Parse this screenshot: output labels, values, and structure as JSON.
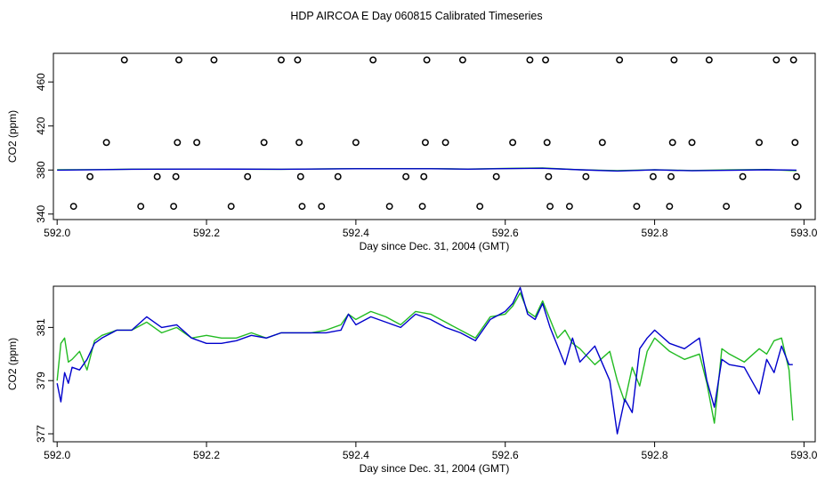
{
  "title": "HDP AIRCOA E  Day 060815  Calibrated Timeseries",
  "colors": {
    "series_green": "#22bb22",
    "series_blue": "#0000cc",
    "axis": "#000000",
    "marker": "#000000"
  },
  "chart_data": [
    {
      "type": "scatter",
      "xlabel": "Day since Dec. 31, 2004 (GMT)",
      "ylabel": "CO2 (ppm)",
      "xlim": [
        591.995,
        593.015
      ],
      "ylim": [
        335,
        486
      ],
      "xticks": [
        "592.0",
        "592.2",
        "592.4",
        "592.6",
        "592.8",
        "593.0"
      ],
      "yticks": [
        "340",
        "380",
        "420",
        "460"
      ],
      "grid": false,
      "markers": [
        {
          "x": 592.022,
          "y": 347
        },
        {
          "x": 592.044,
          "y": 374
        },
        {
          "x": 592.066,
          "y": 405
        },
        {
          "x": 592.09,
          "y": 480
        },
        {
          "x": 592.112,
          "y": 347
        },
        {
          "x": 592.134,
          "y": 374
        },
        {
          "x": 592.156,
          "y": 347
        },
        {
          "x": 592.159,
          "y": 374
        },
        {
          "x": 592.161,
          "y": 405
        },
        {
          "x": 592.163,
          "y": 480
        },
        {
          "x": 592.187,
          "y": 405
        },
        {
          "x": 592.21,
          "y": 480
        },
        {
          "x": 592.233,
          "y": 347
        },
        {
          "x": 592.255,
          "y": 374
        },
        {
          "x": 592.277,
          "y": 405
        },
        {
          "x": 592.3,
          "y": 480
        },
        {
          "x": 592.322,
          "y": 480
        },
        {
          "x": 592.324,
          "y": 405
        },
        {
          "x": 592.326,
          "y": 374
        },
        {
          "x": 592.328,
          "y": 347
        },
        {
          "x": 592.354,
          "y": 347
        },
        {
          "x": 592.376,
          "y": 374
        },
        {
          "x": 592.4,
          "y": 405
        },
        {
          "x": 592.423,
          "y": 480
        },
        {
          "x": 592.445,
          "y": 347
        },
        {
          "x": 592.467,
          "y": 374
        },
        {
          "x": 592.489,
          "y": 347
        },
        {
          "x": 592.491,
          "y": 374
        },
        {
          "x": 592.493,
          "y": 405
        },
        {
          "x": 592.495,
          "y": 480
        },
        {
          "x": 592.52,
          "y": 405
        },
        {
          "x": 592.543,
          "y": 480
        },
        {
          "x": 592.566,
          "y": 347
        },
        {
          "x": 592.588,
          "y": 374
        },
        {
          "x": 592.61,
          "y": 405
        },
        {
          "x": 592.633,
          "y": 480
        },
        {
          "x": 592.654,
          "y": 480
        },
        {
          "x": 592.656,
          "y": 405
        },
        {
          "x": 592.658,
          "y": 374
        },
        {
          "x": 592.66,
          "y": 347
        },
        {
          "x": 592.686,
          "y": 347
        },
        {
          "x": 592.708,
          "y": 374
        },
        {
          "x": 592.73,
          "y": 405
        },
        {
          "x": 592.753,
          "y": 480
        },
        {
          "x": 592.776,
          "y": 347
        },
        {
          "x": 592.798,
          "y": 374
        },
        {
          "x": 592.82,
          "y": 347
        },
        {
          "x": 592.822,
          "y": 374
        },
        {
          "x": 592.824,
          "y": 405
        },
        {
          "x": 592.826,
          "y": 480
        },
        {
          "x": 592.85,
          "y": 405
        },
        {
          "x": 592.873,
          "y": 480
        },
        {
          "x": 592.896,
          "y": 347
        },
        {
          "x": 592.918,
          "y": 374
        },
        {
          "x": 592.94,
          "y": 405
        },
        {
          "x": 592.963,
          "y": 480
        },
        {
          "x": 592.986,
          "y": 480
        },
        {
          "x": 592.988,
          "y": 405
        },
        {
          "x": 592.99,
          "y": 374
        },
        {
          "x": 592.992,
          "y": 347
        }
      ],
      "series": [
        {
          "color": "#22bb22",
          "x": [
            592.0,
            592.05,
            592.1,
            592.2,
            592.3,
            592.4,
            592.5,
            592.55,
            592.6,
            592.65,
            592.7,
            592.75,
            592.8,
            592.85,
            592.9,
            592.95,
            592.99
          ],
          "values": [
            380.2,
            380.4,
            380.8,
            380.9,
            380.7,
            381.3,
            381.3,
            380.9,
            381.4,
            381.8,
            380.3,
            379.4,
            380.2,
            379.6,
            380.1,
            380.5,
            379.3
          ]
        },
        {
          "color": "#0000cc",
          "x": [
            592.0,
            592.05,
            592.1,
            592.2,
            592.3,
            592.4,
            592.5,
            592.55,
            592.6,
            592.65,
            592.7,
            592.75,
            592.8,
            592.85,
            592.9,
            592.95,
            592.99
          ],
          "values": [
            379.9,
            380.3,
            380.7,
            380.9,
            380.7,
            381.2,
            381.2,
            380.8,
            381.3,
            381.6,
            380.2,
            379.1,
            380.1,
            379.3,
            379.7,
            380.2,
            379.9
          ]
        }
      ]
    },
    {
      "type": "line",
      "xlabel": "Day since Dec. 31, 2004 (GMT)",
      "ylabel": "CO2 (ppm)",
      "xlim": [
        591.995,
        593.015
      ],
      "ylim": [
        376.7,
        382.55
      ],
      "xticks": [
        "592.0",
        "592.2",
        "592.4",
        "592.6",
        "592.8",
        "593.0"
      ],
      "yticks": [
        "377",
        "379",
        "381"
      ],
      "grid": false,
      "series": [
        {
          "color": "#22bb22",
          "x": [
            592.0,
            592.005,
            592.01,
            592.015,
            592.02,
            592.03,
            592.04,
            592.05,
            592.06,
            592.08,
            592.1,
            592.12,
            592.14,
            592.16,
            592.18,
            592.2,
            592.22,
            592.24,
            592.26,
            592.28,
            592.3,
            592.32,
            592.34,
            592.36,
            592.38,
            592.39,
            592.4,
            592.42,
            592.44,
            592.46,
            592.48,
            592.5,
            592.52,
            592.54,
            592.56,
            592.58,
            592.6,
            592.61,
            592.62,
            592.63,
            592.64,
            592.65,
            592.66,
            592.67,
            592.68,
            592.69,
            592.7,
            592.72,
            592.74,
            592.75,
            592.76,
            592.77,
            592.78,
            592.79,
            592.8,
            592.82,
            592.84,
            592.86,
            592.87,
            592.88,
            592.89,
            592.9,
            592.92,
            592.94,
            592.95,
            592.96,
            592.97,
            592.98,
            592.985
          ],
          "values": [
            379.0,
            380.4,
            380.6,
            379.7,
            379.8,
            380.1,
            379.4,
            380.5,
            380.7,
            380.9,
            380.9,
            381.2,
            380.8,
            381.0,
            380.6,
            380.7,
            380.6,
            380.6,
            380.8,
            380.6,
            380.8,
            380.8,
            380.8,
            380.9,
            381.1,
            381.5,
            381.3,
            381.6,
            381.4,
            381.1,
            381.6,
            381.5,
            381.2,
            380.9,
            380.6,
            381.4,
            381.5,
            381.8,
            382.3,
            381.6,
            381.4,
            382.0,
            381.3,
            380.6,
            380.9,
            380.4,
            380.2,
            379.6,
            380.1,
            379.0,
            378.2,
            379.5,
            378.8,
            380.1,
            380.6,
            380.1,
            379.8,
            380.0,
            378.9,
            377.4,
            380.2,
            380.0,
            379.7,
            380.2,
            380.0,
            380.5,
            380.6,
            379.4,
            377.5
          ]
        },
        {
          "color": "#0000cc",
          "x": [
            592.0,
            592.005,
            592.01,
            592.015,
            592.02,
            592.03,
            592.04,
            592.05,
            592.06,
            592.08,
            592.1,
            592.12,
            592.14,
            592.16,
            592.18,
            592.2,
            592.22,
            592.24,
            592.26,
            592.28,
            592.3,
            592.32,
            592.34,
            592.36,
            592.38,
            592.39,
            592.4,
            592.42,
            592.44,
            592.46,
            592.48,
            592.5,
            592.52,
            592.54,
            592.56,
            592.58,
            592.6,
            592.61,
            592.62,
            592.63,
            592.64,
            592.65,
            592.66,
            592.67,
            592.68,
            592.69,
            592.7,
            592.72,
            592.74,
            592.75,
            592.76,
            592.77,
            592.78,
            592.79,
            592.8,
            592.82,
            592.84,
            592.86,
            592.87,
            592.88,
            592.89,
            592.9,
            592.92,
            592.94,
            592.95,
            592.96,
            592.97,
            592.98,
            592.985
          ],
          "values": [
            378.9,
            378.2,
            379.3,
            378.9,
            379.5,
            379.4,
            379.8,
            380.4,
            380.6,
            380.9,
            380.9,
            381.4,
            381.0,
            381.1,
            380.6,
            380.4,
            380.4,
            380.5,
            380.7,
            380.6,
            380.8,
            380.8,
            380.8,
            380.8,
            380.9,
            381.5,
            381.1,
            381.4,
            381.2,
            381.0,
            381.5,
            381.3,
            381.0,
            380.8,
            380.5,
            381.3,
            381.6,
            381.9,
            382.5,
            381.5,
            381.3,
            381.9,
            381.0,
            380.3,
            379.6,
            380.6,
            379.7,
            380.3,
            379.0,
            377.0,
            378.3,
            377.8,
            380.2,
            380.6,
            380.9,
            380.4,
            380.2,
            380.6,
            379.0,
            378.0,
            379.8,
            379.6,
            379.5,
            378.5,
            379.8,
            379.3,
            380.3,
            379.6,
            379.6
          ]
        }
      ]
    }
  ]
}
